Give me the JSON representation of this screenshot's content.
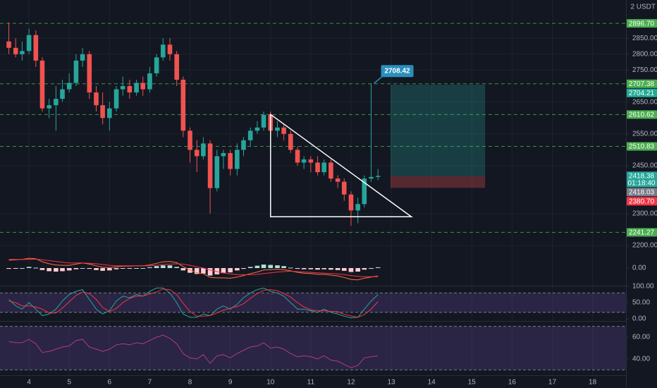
{
  "currency_label": "2 USDT",
  "chart_data": [
    {
      "type": "candlestick",
      "t": [
        3.5,
        3.67,
        3.83,
        4,
        4.17,
        4.33,
        4.5,
        4.67,
        4.83,
        5,
        5.17,
        5.33,
        5.5,
        5.67,
        5.83,
        6,
        6.17,
        6.33,
        6.5,
        6.67,
        6.83,
        7,
        7.17,
        7.33,
        7.5,
        7.67,
        7.83,
        8,
        8.17,
        8.33,
        8.5,
        8.67,
        8.83,
        9,
        9.17,
        9.33,
        9.5,
        9.67,
        9.83,
        10,
        10.17,
        10.33,
        10.5,
        10.67,
        10.83,
        11,
        11.17,
        11.33,
        11.5,
        11.67,
        11.83,
        12,
        12.17,
        12.33,
        12.5,
        12.67
      ],
      "open": [
        2840,
        2820,
        2800,
        2810,
        2860,
        2780,
        2630,
        2640,
        2660,
        2690,
        2710,
        2780,
        2800,
        2680,
        2640,
        2600,
        2630,
        2690,
        2700,
        2680,
        2710,
        2690,
        2740,
        2790,
        2830,
        2800,
        2720,
        2560,
        2500,
        2480,
        2520,
        2380,
        2480,
        2490,
        2440,
        2500,
        2530,
        2560,
        2570,
        2610,
        2560,
        2570,
        2550,
        2500,
        2460,
        2470,
        2460,
        2430,
        2460,
        2410,
        2400,
        2360,
        2310,
        2330,
        2410,
        2415
      ],
      "high": [
        2900,
        2850,
        2840,
        2880,
        2875,
        2790,
        2660,
        2700,
        2720,
        2740,
        2800,
        2820,
        2810,
        2700,
        2680,
        2650,
        2700,
        2730,
        2720,
        2720,
        2730,
        2760,
        2800,
        2850,
        2850,
        2810,
        2730,
        2570,
        2530,
        2540,
        2530,
        2500,
        2500,
        2500,
        2520,
        2540,
        2570,
        2590,
        2620,
        2620,
        2590,
        2580,
        2560,
        2510,
        2480,
        2480,
        2480,
        2470,
        2470,
        2420,
        2410,
        2370,
        2350,
        2420,
        2708.42,
        2440
      ],
      "low": [
        2800,
        2790,
        2780,
        2800,
        2760,
        2620,
        2600,
        2560,
        2650,
        2680,
        2700,
        2760,
        2660,
        2620,
        2580,
        2560,
        2620,
        2670,
        2660,
        2670,
        2670,
        2680,
        2730,
        2780,
        2780,
        2700,
        2540,
        2460,
        2430,
        2470,
        2300,
        2370,
        2440,
        2420,
        2420,
        2480,
        2510,
        2550,
        2560,
        2550,
        2540,
        2530,
        2490,
        2450,
        2440,
        2430,
        2420,
        2420,
        2400,
        2380,
        2340,
        2262,
        2270,
        2320,
        2400,
        2405
      ],
      "close": [
        2820,
        2800,
        2810,
        2860,
        2780,
        2630,
        2640,
        2660,
        2690,
        2710,
        2780,
        2800,
        2680,
        2640,
        2600,
        2630,
        2690,
        2700,
        2680,
        2710,
        2690,
        2740,
        2790,
        2830,
        2800,
        2720,
        2560,
        2500,
        2480,
        2520,
        2380,
        2480,
        2490,
        2440,
        2500,
        2530,
        2560,
        2570,
        2610,
        2560,
        2570,
        2550,
        2500,
        2460,
        2470,
        2460,
        2430,
        2460,
        2410,
        2400,
        2360,
        2310,
        2330,
        2410,
        2415,
        2418.38
      ],
      "up_color": "#26a69a",
      "down_color": "#ef5350",
      "xlim": [
        3.28,
        18.83
      ],
      "xticks": [
        4,
        5,
        6,
        7,
        8,
        9,
        10,
        11,
        12,
        13,
        14,
        15,
        16,
        17,
        18
      ],
      "ylim": [
        2184.5,
        2970
      ],
      "yticks": [
        {
          "value": 2200,
          "label": "2200.00"
        },
        {
          "value": 2300,
          "label": "2300.00"
        },
        {
          "value": 2450,
          "label": "2450.00"
        },
        {
          "value": 2550,
          "label": "2550.00"
        },
        {
          "value": 2650,
          "label": "2650.00"
        },
        {
          "value": 2750,
          "label": "2750.00"
        },
        {
          "value": 2800,
          "label": "2800.00"
        },
        {
          "value": 2850,
          "label": "2850.00"
        }
      ],
      "grid": true,
      "price_tags": [
        {
          "value": 2896.7,
          "label": "2896.70",
          "color": "#4caf50",
          "line": true
        },
        {
          "value": 2707.38,
          "label": "2707.38",
          "color": "#4caf50",
          "line": true
        },
        {
          "value": 2704.21,
          "label": "2704.21",
          "color": "#22ab94",
          "line": false
        },
        {
          "value": 2610.62,
          "label": "2610.62",
          "color": "#4caf50",
          "line": true
        },
        {
          "value": 2510.83,
          "label": "2510.83",
          "color": "#4caf50",
          "line": true
        },
        {
          "value": 2418.38,
          "label": "2418.38",
          "color": "#26a69a",
          "line": false
        },
        {
          "value": 2418.03,
          "label": "2418.03",
          "color": "#787b86",
          "line": false
        },
        {
          "value": 2380.7,
          "label": "2380.70",
          "color": "#f23645",
          "line": false
        },
        {
          "value": 2241.27,
          "label": "2241.27",
          "color": "#4caf50",
          "line": true
        }
      ],
      "countdown": "01:18:40",
      "annotation": {
        "value": 2708.42,
        "label": "2708.42",
        "color": "#2a8fbd"
      },
      "triangle": {
        "x": [
          10,
          13.5,
          10
        ],
        "y": [
          2611,
          2290,
          2290
        ],
        "color": "#ffffff"
      },
      "position": {
        "start": 12.98,
        "end": 15.33,
        "target": 2704.21,
        "entry": 2418.03,
        "stop": 2380.7
      }
    },
    {
      "type": "macd",
      "macd": [
        20,
        21,
        22,
        25,
        24,
        16,
        11,
        8,
        7,
        7,
        10,
        13,
        10,
        6,
        2,
        1,
        3,
        5,
        5,
        6,
        6,
        8,
        12,
        16,
        17,
        14,
        4,
        -5,
        -12,
        -14,
        -24,
        -25,
        -25,
        -26,
        -23,
        -19,
        -14,
        -10,
        -5,
        -4,
        -3,
        -4,
        -7,
        -11,
        -13,
        -14,
        -16,
        -16,
        -18,
        -20,
        -24,
        -29,
        -30,
        -26,
        -23,
        -20
      ],
      "signal": [
        22,
        22,
        22,
        22,
        23,
        21,
        19,
        17,
        15,
        13,
        13,
        13,
        12,
        11,
        9,
        7,
        6,
        6,
        6,
        6,
        6,
        6,
        7,
        9,
        10,
        11,
        10,
        7,
        3,
        0,
        -5,
        -9,
        -12,
        -15,
        -17,
        -17,
        -17,
        -16,
        -14,
        -12,
        -10,
        -9,
        -8,
        -9,
        -10,
        -11,
        -12,
        -13,
        -14,
        -15,
        -17,
        -19,
        -21,
        -22,
        -22,
        -22
      ],
      "hist": [
        -2,
        -1,
        0,
        3,
        1,
        -5,
        -8,
        -9,
        -8,
        -6,
        -3,
        0,
        -2,
        -5,
        -7,
        -6,
        -3,
        -1,
        -1,
        0,
        0,
        2,
        5,
        7,
        7,
        3,
        -6,
        -12,
        -15,
        -14,
        -19,
        -16,
        -13,
        -11,
        -6,
        -2,
        3,
        6,
        9,
        8,
        7,
        5,
        1,
        -2,
        -3,
        -3,
        -4,
        -3,
        -4,
        -5,
        -7,
        -10,
        -9,
        -4,
        -1,
        2
      ],
      "macd_color": "#ff7043",
      "signal_color": "#f23645",
      "hist_up_color": "#b2dfdb",
      "hist_down_color": "#ffcdd2",
      "ylim": [
        -45,
        45
      ],
      "yticks": [
        {
          "value": 0,
          "label": "0.00"
        }
      ]
    },
    {
      "type": "stoch",
      "k": [
        60,
        40,
        30,
        50,
        30,
        10,
        15,
        30,
        55,
        75,
        85,
        90,
        60,
        30,
        15,
        25,
        55,
        70,
        65,
        75,
        70,
        85,
        95,
        95,
        80,
        50,
        15,
        5,
        5,
        15,
        10,
        30,
        40,
        30,
        45,
        65,
        80,
        90,
        95,
        85,
        80,
        70,
        50,
        30,
        30,
        25,
        20,
        30,
        20,
        15,
        8,
        3,
        5,
        30,
        55,
        75
      ],
      "d": [
        55,
        50,
        40,
        40,
        37,
        30,
        18,
        18,
        33,
        53,
        72,
        83,
        78,
        60,
        35,
        23,
        32,
        50,
        63,
        70,
        70,
        77,
        83,
        92,
        90,
        75,
        48,
        23,
        8,
        8,
        10,
        18,
        27,
        33,
        38,
        47,
        63,
        78,
        88,
        90,
        87,
        78,
        67,
        50,
        37,
        28,
        25,
        25,
        23,
        22,
        14,
        9,
        5,
        13,
        30,
        53
      ],
      "k_color": "#26a69a",
      "d_color": "#f23645",
      "ylim": [
        0,
        100
      ],
      "yticks": [
        {
          "value": 0,
          "label": "0.00"
        },
        {
          "value": 50,
          "label": "50.00"
        },
        {
          "value": 100,
          "label": "100.00"
        }
      ],
      "band": [
        20,
        80
      ],
      "band_color": "#7e57c2"
    },
    {
      "type": "rsi",
      "values": [
        56,
        55,
        55,
        58,
        54,
        46,
        47,
        49,
        51,
        52,
        57,
        58,
        51,
        49,
        47,
        49,
        53,
        54,
        53,
        55,
        54,
        57,
        60,
        62,
        59,
        54,
        45,
        41,
        40,
        44,
        36,
        43,
        44,
        41,
        45,
        48,
        51,
        52,
        55,
        50,
        51,
        49,
        45,
        42,
        43,
        42,
        40,
        43,
        39,
        38,
        35,
        32,
        34,
        41,
        42,
        43
      ],
      "color": "#b03a8c",
      "ylim": [
        25,
        73
      ],
      "yticks": [
        {
          "value": 40,
          "label": "40.00"
        },
        {
          "value": 60,
          "label": "60.00"
        }
      ],
      "band": [
        30,
        70
      ],
      "band_color": "#7e57c2"
    }
  ]
}
